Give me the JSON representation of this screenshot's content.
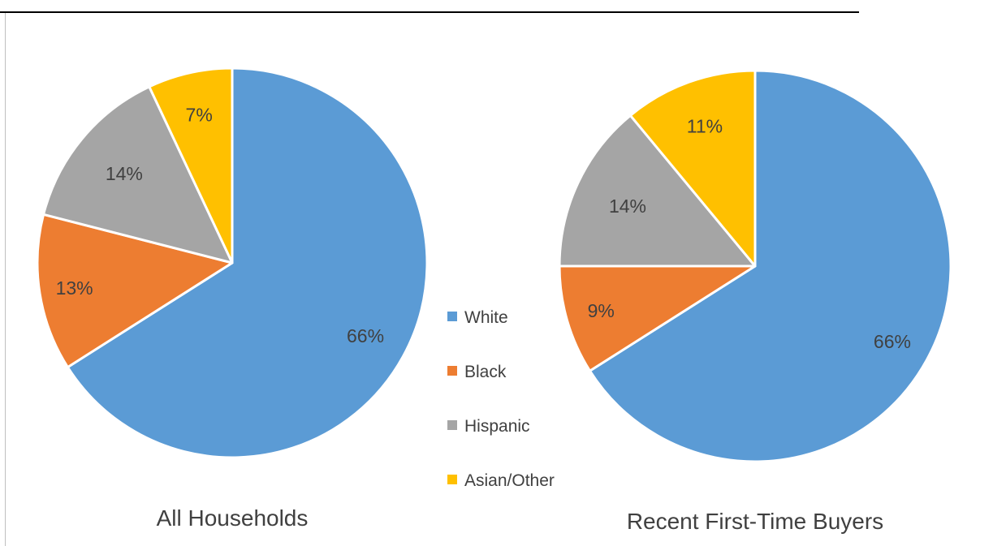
{
  "chart_data": [
    {
      "type": "pie",
      "title": "All Households",
      "categories": [
        "White",
        "Black",
        "Hispanic",
        "Asian/Other"
      ],
      "values": [
        66,
        13,
        14,
        7
      ],
      "labels": [
        "66%",
        "13%",
        "14%",
        "7%"
      ],
      "colors": [
        "#5B9BD5",
        "#ED7D31",
        "#A5A5A5",
        "#FFC000"
      ]
    },
    {
      "type": "pie",
      "title": "Recent First-Time Buyers",
      "categories": [
        "White",
        "Black",
        "Hispanic",
        "Asian/Other"
      ],
      "values": [
        66,
        9,
        14,
        11
      ],
      "labels": [
        "66%",
        "9%",
        "14%",
        "11%"
      ],
      "colors": [
        "#5B9BD5",
        "#ED7D31",
        "#A5A5A5",
        "#FFC000"
      ]
    }
  ],
  "legend": {
    "position": "center",
    "items": [
      {
        "label": "White",
        "color": "#5B9BD5"
      },
      {
        "label": "Black",
        "color": "#ED7D31"
      },
      {
        "label": "Hispanic",
        "color": "#A5A5A5"
      },
      {
        "label": "Asian/Other",
        "color": "#FFC000"
      }
    ]
  }
}
